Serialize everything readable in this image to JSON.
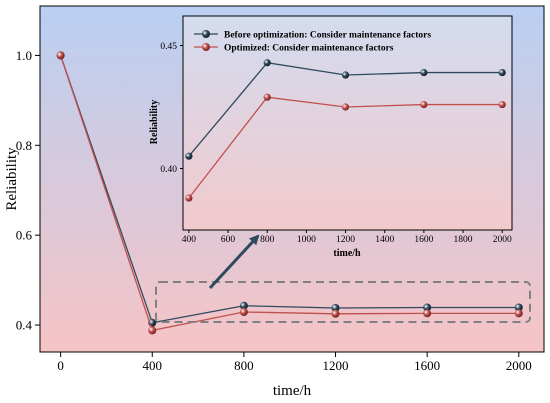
{
  "colors": {
    "bg_top": "#b9cff2",
    "bg_bottom": "#f6c4c6",
    "inset_bg_top": "#d3dcef",
    "inset_bg_bottom": "#f2c9cc",
    "before": "#2f4a5e",
    "optimized": "#c0504d",
    "highlight_box": "#808080",
    "arrow": "#2f4a5e"
  },
  "chart_data": [
    {
      "id": "main",
      "type": "line",
      "xlabel": "time/h",
      "ylabel": "Reliability",
      "xlim": [
        -90,
        2110
      ],
      "ylim": [
        0.34,
        1.11
      ],
      "xticks": [
        0,
        400,
        800,
        1200,
        1600,
        2000
      ],
      "yticks": [
        0.4,
        0.6,
        0.8,
        1.0
      ],
      "ytick_labels": [
        "0.4",
        "0.6",
        "0.8",
        "1.0"
      ],
      "grid": false,
      "series": [
        {
          "name": "Before optimization: Consider maintenance factors",
          "color": "#2f4a5e",
          "x": [
            0,
            400,
            800,
            1200,
            1600,
            2000
          ],
          "y": [
            1.0,
            0.405,
            0.443,
            0.438,
            0.439,
            0.439
          ]
        },
        {
          "name": "Optimized: Consider maintenance factors",
          "color": "#c0504d",
          "x": [
            0,
            400,
            800,
            1200,
            1600,
            2000
          ],
          "y": [
            1.0,
            0.388,
            0.429,
            0.425,
            0.426,
            0.426
          ]
        }
      ]
    },
    {
      "id": "inset",
      "type": "line",
      "xlabel": "time/h",
      "ylabel": "Reliability",
      "xlim": [
        370,
        2050
      ],
      "ylim": [
        0.375,
        0.462
      ],
      "xticks": [
        400,
        600,
        800,
        1000,
        1200,
        1400,
        1600,
        1800,
        2000
      ],
      "yticks": [
        0.4,
        0.45
      ],
      "ytick_labels": [
        "0.40",
        "0.45"
      ],
      "grid": false,
      "legend_position": "top-left",
      "series": [
        {
          "name": "Before optimization: Consider maintenance factors",
          "color": "#2f4a5e",
          "x": [
            400,
            800,
            1200,
            1600,
            2000
          ],
          "y": [
            0.405,
            0.443,
            0.438,
            0.439,
            0.439
          ]
        },
        {
          "name": "Optimized: Consider maintenance factors",
          "color": "#c0504d",
          "x": [
            400,
            800,
            1200,
            1600,
            2000
          ],
          "y": [
            0.388,
            0.429,
            0.425,
            0.426,
            0.426
          ]
        }
      ]
    }
  ]
}
